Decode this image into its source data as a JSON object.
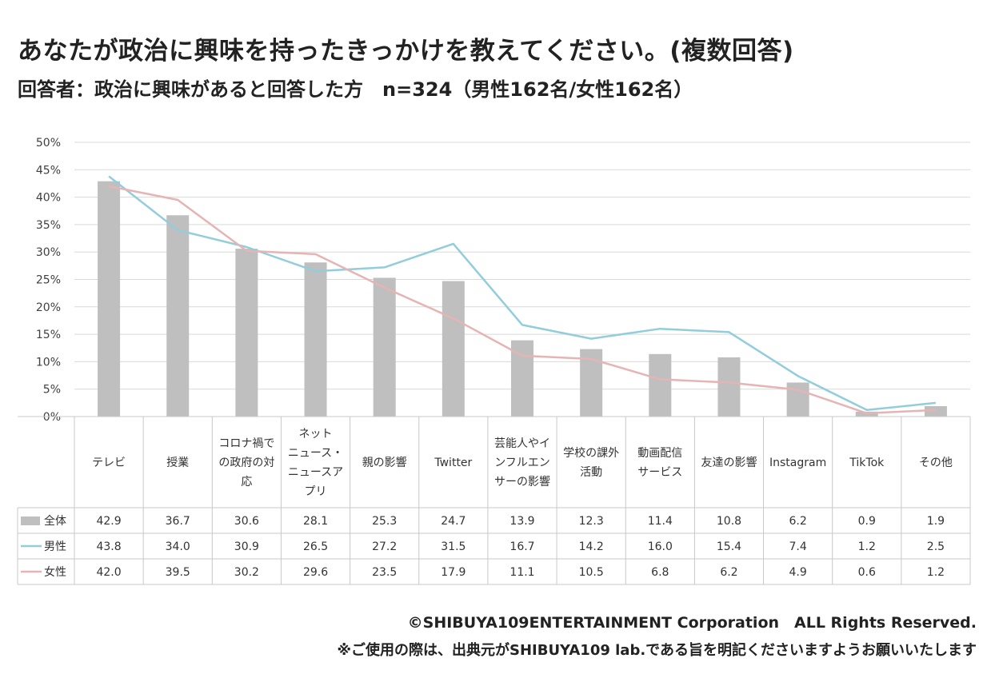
{
  "title": "あなたが政治に興味を持ったきっかけを教えてください。(複数回答)",
  "subtitle": "回答者：政治に興味があると回答した方　n=324（男性162名/女性162名）",
  "chart_data": {
    "type": "bar",
    "y_axis": {
      "min": 0,
      "max": 50,
      "step": 5,
      "unit": "%",
      "ticks": [
        "0%",
        "5%",
        "10%",
        "15%",
        "20%",
        "25%",
        "30%",
        "35%",
        "40%",
        "45%",
        "50%"
      ]
    },
    "categories": [
      [
        "テレビ"
      ],
      [
        "授業"
      ],
      [
        "コロナ禍で",
        "の政府の対",
        "応"
      ],
      [
        "ネット",
        "ニュース・",
        "ニュースア",
        "プリ"
      ],
      [
        "親の影響"
      ],
      [
        "Twitter"
      ],
      [
        "芸能人やイ",
        "ンフルエン",
        "サーの影響"
      ],
      [
        "学校の課外",
        "活動"
      ],
      [
        "動画配信",
        "サービス"
      ],
      [
        "友達の影響"
      ],
      [
        "Instagram"
      ],
      [
        "TikTok"
      ],
      [
        "その他"
      ]
    ],
    "series": [
      {
        "name": "全体",
        "mark": "bar",
        "color": "#bfbfbf",
        "values": [
          42.9,
          36.7,
          30.6,
          28.1,
          25.3,
          24.7,
          13.9,
          12.3,
          11.4,
          10.8,
          6.2,
          0.9,
          1.9
        ],
        "labels": [
          "42.9",
          "36.7",
          "30.6",
          "28.1",
          "25.3",
          "24.7",
          "13.9",
          "12.3",
          "11.4",
          "10.8",
          "6.2",
          "0.9",
          "1.9"
        ]
      },
      {
        "name": "男性",
        "mark": "line",
        "color": "#92cddc",
        "values": [
          43.8,
          34.0,
          30.9,
          26.5,
          27.2,
          31.5,
          16.7,
          14.2,
          16.0,
          15.4,
          7.4,
          1.2,
          2.5
        ],
        "labels": [
          "43.8",
          "34.0",
          "30.9",
          "26.5",
          "27.2",
          "31.5",
          "16.7",
          "14.2",
          "16.0",
          "15.4",
          "7.4",
          "1.2",
          "2.5"
        ]
      },
      {
        "name": "女性",
        "mark": "line",
        "color": "#e6b4b4",
        "values": [
          42.0,
          39.5,
          30.2,
          29.6,
          23.5,
          17.9,
          11.1,
          10.5,
          6.8,
          6.2,
          4.9,
          0.6,
          1.2
        ],
        "labels": [
          "42.0",
          "39.5",
          "30.2",
          "29.6",
          "23.5",
          "17.9",
          "11.1",
          "10.5",
          "6.8",
          "6.2",
          "4.9",
          "0.6",
          "1.2"
        ]
      }
    ]
  },
  "footer": {
    "copyright": "©SHIBUYA109ENTERTAINMENT Corporation　ALL Rights Reserved.",
    "note": "※ご使用の際は、出典元がSHIBUYA109 lab.である旨を明記くださいますようお願いいたします"
  }
}
